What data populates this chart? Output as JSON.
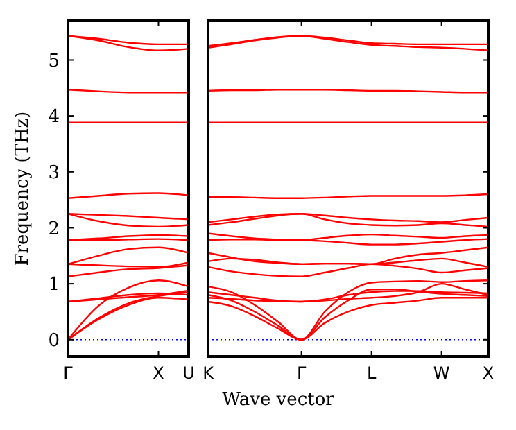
{
  "chart_data": [
    {
      "type": "line",
      "ylabel": "Frequency (THz)",
      "ylim": [
        -0.3,
        5.7
      ],
      "yticks": [
        0,
        1,
        2,
        3,
        4,
        5
      ],
      "grid": false,
      "line_style": "solid",
      "marker": "none",
      "categories": [
        "Γ",
        null,
        null,
        "X",
        "U"
      ],
      "ref_lines": [
        {
          "axis": "y",
          "value": 0,
          "color": "#0000ff",
          "line_style": "dotted"
        }
      ],
      "series": [
        {
          "color": "#ff0000",
          "values": [
            0,
            0.36,
            0.62,
            0.75,
            0.72
          ]
        },
        {
          "color": "#ff0000",
          "values": [
            0,
            0.38,
            0.65,
            0.78,
            0.85
          ]
        },
        {
          "color": "#ff0000",
          "values": [
            0,
            0.6,
            0.93,
            1.06,
            0.95
          ]
        },
        {
          "color": "#ff0000",
          "values": [
            0.68,
            0.72,
            0.76,
            0.8,
            0.88
          ]
        },
        {
          "color": "#ff0000",
          "values": [
            0.68,
            0.74,
            0.8,
            0.83,
            0.8
          ]
        },
        {
          "color": "#ff0000",
          "values": [
            1.13,
            1.2,
            1.26,
            1.28,
            1.33
          ]
        },
        {
          "color": "#ff0000",
          "values": [
            1.35,
            1.5,
            1.62,
            1.65,
            1.55
          ]
        },
        {
          "color": "#ff0000",
          "values": [
            1.35,
            1.33,
            1.31,
            1.3,
            1.38
          ]
        },
        {
          "color": "#ff0000",
          "values": [
            1.78,
            1.81,
            1.85,
            1.87,
            1.85
          ]
        },
        {
          "color": "#ff0000",
          "values": [
            1.78,
            1.78,
            1.79,
            1.8,
            1.78
          ]
        },
        {
          "color": "#ff0000",
          "values": [
            2.25,
            2.12,
            2.04,
            2.02,
            2.05
          ]
        },
        {
          "color": "#ff0000",
          "values": [
            2.25,
            2.23,
            2.21,
            2.18,
            2.15
          ]
        },
        {
          "color": "#ff0000",
          "values": [
            2.53,
            2.57,
            2.61,
            2.62,
            2.58
          ]
        },
        {
          "color": "#ff0000",
          "values": [
            3.88,
            3.88,
            3.88,
            3.88,
            3.88
          ]
        },
        {
          "color": "#ff0000",
          "values": [
            4.47,
            4.44,
            4.42,
            4.42,
            4.42
          ]
        },
        {
          "color": "#ff0000",
          "values": [
            5.43,
            5.35,
            5.23,
            5.17,
            5.2
          ]
        },
        {
          "color": "#ff0000",
          "values": [
            5.43,
            5.38,
            5.31,
            5.28,
            5.28
          ]
        }
      ]
    },
    {
      "type": "line",
      "xlabel": "Wave vector",
      "tick_labels": "x",
      "ylim": [
        -0.3,
        5.7
      ],
      "yticks": [
        0,
        1,
        2,
        3,
        4,
        5
      ],
      "grid": false,
      "line_style": "solid",
      "marker": "none",
      "categories": [
        "K",
        null,
        null,
        null,
        "Γ",
        null,
        null,
        "L",
        null,
        null,
        "W",
        null,
        "X"
      ],
      "ref_lines": [
        {
          "axis": "y",
          "value": 0,
          "color": "#0000ff",
          "line_style": "dotted"
        }
      ],
      "series": [
        {
          "color": "#ff0000",
          "values": [
            0.68,
            0.6,
            0.42,
            0.2,
            0,
            0.3,
            0.5,
            0.62,
            0.66,
            0.7,
            0.75,
            0.75,
            0.75
          ]
        },
        {
          "color": "#ff0000",
          "values": [
            0.8,
            0.7,
            0.5,
            0.25,
            0,
            0.4,
            0.7,
            0.9,
            0.9,
            0.86,
            0.82,
            0.8,
            0.78
          ]
        },
        {
          "color": "#ff0000",
          "values": [
            0.95,
            0.85,
            0.62,
            0.32,
            0,
            0.5,
            0.85,
            1.02,
            1.04,
            1.05,
            1.03,
            1.05,
            1.06
          ]
        },
        {
          "color": "#ff0000",
          "values": [
            0.75,
            0.73,
            0.7,
            0.69,
            0.68,
            0.7,
            0.73,
            0.75,
            0.78,
            0.85,
            1.0,
            0.9,
            0.8
          ]
        },
        {
          "color": "#ff0000",
          "values": [
            0.85,
            0.8,
            0.75,
            0.7,
            0.68,
            0.72,
            0.8,
            0.85,
            0.87,
            0.87,
            0.85,
            0.84,
            0.83
          ]
        },
        {
          "color": "#ff0000",
          "values": [
            1.3,
            1.22,
            1.17,
            1.14,
            1.13,
            1.2,
            1.28,
            1.35,
            1.32,
            1.27,
            1.2,
            1.24,
            1.28
          ]
        },
        {
          "color": "#ff0000",
          "values": [
            1.55,
            1.47,
            1.4,
            1.37,
            1.35,
            1.36,
            1.36,
            1.35,
            1.45,
            1.52,
            1.55,
            1.6,
            1.65
          ]
        },
        {
          "color": "#ff0000",
          "values": [
            1.4,
            1.45,
            1.43,
            1.38,
            1.35,
            1.36,
            1.36,
            1.35,
            1.38,
            1.42,
            1.45,
            1.38,
            1.3
          ]
        },
        {
          "color": "#ff0000",
          "values": [
            1.9,
            1.85,
            1.81,
            1.79,
            1.78,
            1.82,
            1.86,
            1.88,
            1.86,
            1.84,
            1.82,
            1.85,
            1.87
          ]
        },
        {
          "color": "#ff0000",
          "values": [
            1.78,
            1.79,
            1.79,
            1.78,
            1.78,
            1.76,
            1.73,
            1.7,
            1.7,
            1.72,
            1.75,
            1.78,
            1.8
          ]
        },
        {
          "color": "#ff0000",
          "values": [
            2.05,
            2.1,
            2.16,
            2.22,
            2.25,
            2.15,
            2.08,
            2.05,
            2.04,
            2.05,
            2.08,
            2.05,
            2.02
          ]
        },
        {
          "color": "#ff0000",
          "values": [
            2.1,
            2.15,
            2.2,
            2.24,
            2.25,
            2.22,
            2.18,
            2.15,
            2.13,
            2.12,
            2.1,
            2.14,
            2.18
          ]
        },
        {
          "color": "#ff0000",
          "values": [
            2.55,
            2.55,
            2.54,
            2.53,
            2.53,
            2.54,
            2.56,
            2.57,
            2.57,
            2.57,
            2.57,
            2.58,
            2.6
          ]
        },
        {
          "color": "#ff0000",
          "values": [
            3.88,
            3.88,
            3.88,
            3.88,
            3.88,
            3.88,
            3.88,
            3.88,
            3.88,
            3.88,
            3.88,
            3.88,
            3.88
          ]
        },
        {
          "color": "#ff0000",
          "values": [
            4.45,
            4.46,
            4.46,
            4.47,
            4.47,
            4.47,
            4.46,
            4.45,
            4.45,
            4.44,
            4.43,
            4.42,
            4.42
          ]
        },
        {
          "color": "#ff0000",
          "values": [
            5.22,
            5.28,
            5.35,
            5.4,
            5.43,
            5.38,
            5.32,
            5.27,
            5.25,
            5.23,
            5.22,
            5.2,
            5.17
          ]
        },
        {
          "color": "#ff0000",
          "values": [
            5.25,
            5.3,
            5.36,
            5.41,
            5.43,
            5.4,
            5.35,
            5.3,
            5.29,
            5.28,
            5.28,
            5.28,
            5.28
          ]
        }
      ]
    }
  ]
}
